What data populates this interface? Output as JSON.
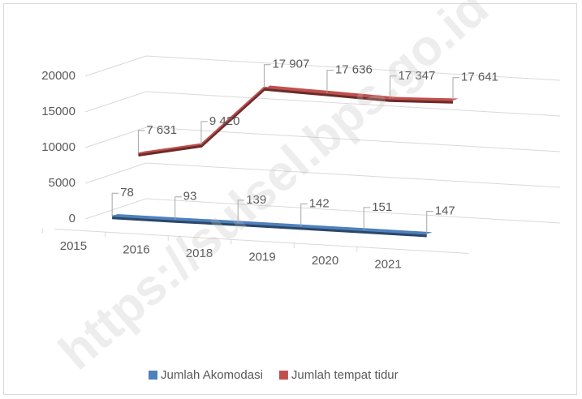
{
  "chart_data": {
    "type": "line3d",
    "categories": [
      "2015",
      "2016",
      "2018",
      "2019",
      "2020",
      "2021"
    ],
    "series": [
      {
        "name": "Jumlah Akomodasi",
        "color": "#4f81bd",
        "values": [
          78,
          93,
          139,
          142,
          151,
          147
        ],
        "value_labels": [
          "78",
          "93",
          "139",
          "142",
          "151",
          "147"
        ]
      },
      {
        "name": "Jumlah tempat tidur",
        "color": "#c0504d",
        "values": [
          7631,
          9420,
          17907,
          17636,
          17347,
          17641
        ],
        "value_labels": [
          "7 631",
          "9 420",
          "17 907",
          "17 636",
          "17 347",
          "17 641"
        ]
      }
    ],
    "ylim": [
      0,
      20000
    ],
    "yticks": [
      0,
      5000,
      10000,
      15000,
      20000
    ],
    "grid": true,
    "legend": "bottom",
    "watermark": "https://sulsel.bps.go.id"
  }
}
